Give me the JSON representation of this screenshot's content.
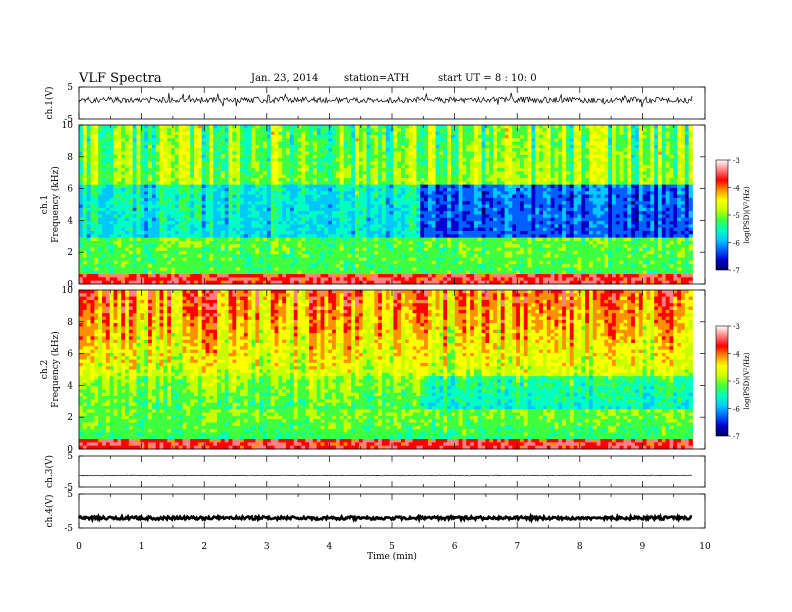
{
  "header": {
    "title": "VLF  Spectra",
    "date": "Jan. 23, 2014",
    "station": "station=ATH",
    "start": "start  UT =  8 : 10: 0"
  },
  "chart_data": [
    {
      "type": "line",
      "panel": "ch1-waveform",
      "ylabel": "ch.1(V)",
      "ylim": [
        -5,
        5
      ],
      "yticks": [
        "5",
        "-5"
      ],
      "xlim": [
        0,
        10
      ]
    },
    {
      "type": "heatmap",
      "panel": "ch1-spectrogram",
      "ylabel": [
        "ch.1",
        "Frequency  (kHz)"
      ],
      "ylim": [
        0,
        10
      ],
      "yticks": [
        "0",
        "2",
        "4",
        "6",
        "8",
        "10"
      ],
      "xlim": [
        0,
        10
      ],
      "data_end_min": 9.8,
      "colorbar": {
        "label": "log(PSD)(V²/Hz)",
        "ticks": [
          "-3",
          "-4",
          "-5",
          "-6",
          "-7"
        ],
        "range": [
          -7,
          -3
        ]
      }
    },
    {
      "type": "heatmap",
      "panel": "ch2-spectrogram",
      "ylabel": [
        "ch.2",
        "Frequency  (kHz)"
      ],
      "ylim": [
        0,
        10
      ],
      "yticks": [
        "0",
        "2",
        "4",
        "6",
        "8",
        "10"
      ],
      "xlim": [
        0,
        10
      ],
      "data_end_min": 9.8,
      "colorbar": {
        "label": "log(PSD)(V²/Hz)",
        "ticks": [
          "-3",
          "-4",
          "-5",
          "-6",
          "-7"
        ],
        "range": [
          -7,
          -3
        ]
      }
    },
    {
      "type": "line",
      "panel": "ch3-waveform",
      "ylabel": "ch.3(V)",
      "ylim": [
        -5,
        5
      ],
      "yticks": [
        "5",
        "-5"
      ],
      "xlim": [
        0,
        10
      ]
    },
    {
      "type": "line",
      "panel": "ch4-waveform",
      "ylabel": "ch.4(V)",
      "ylim": [
        -5,
        5
      ],
      "yticks": [
        "5",
        "-5"
      ],
      "xlim": [
        0,
        10
      ]
    }
  ],
  "xaxis": {
    "label": "Time  (min)",
    "ticks": [
      "0",
      "1",
      "2",
      "3",
      "4",
      "5",
      "6",
      "7",
      "8",
      "9",
      "10"
    ]
  },
  "colors": {
    "frame": "#000000",
    "scale": [
      "#000060",
      "#0000cc",
      "#0060ff",
      "#00c8ff",
      "#00ffc0",
      "#40ff40",
      "#c8ff00",
      "#ffff00",
      "#ff9000",
      "#ff0000",
      "#ff8080",
      "#ffffff"
    ]
  }
}
